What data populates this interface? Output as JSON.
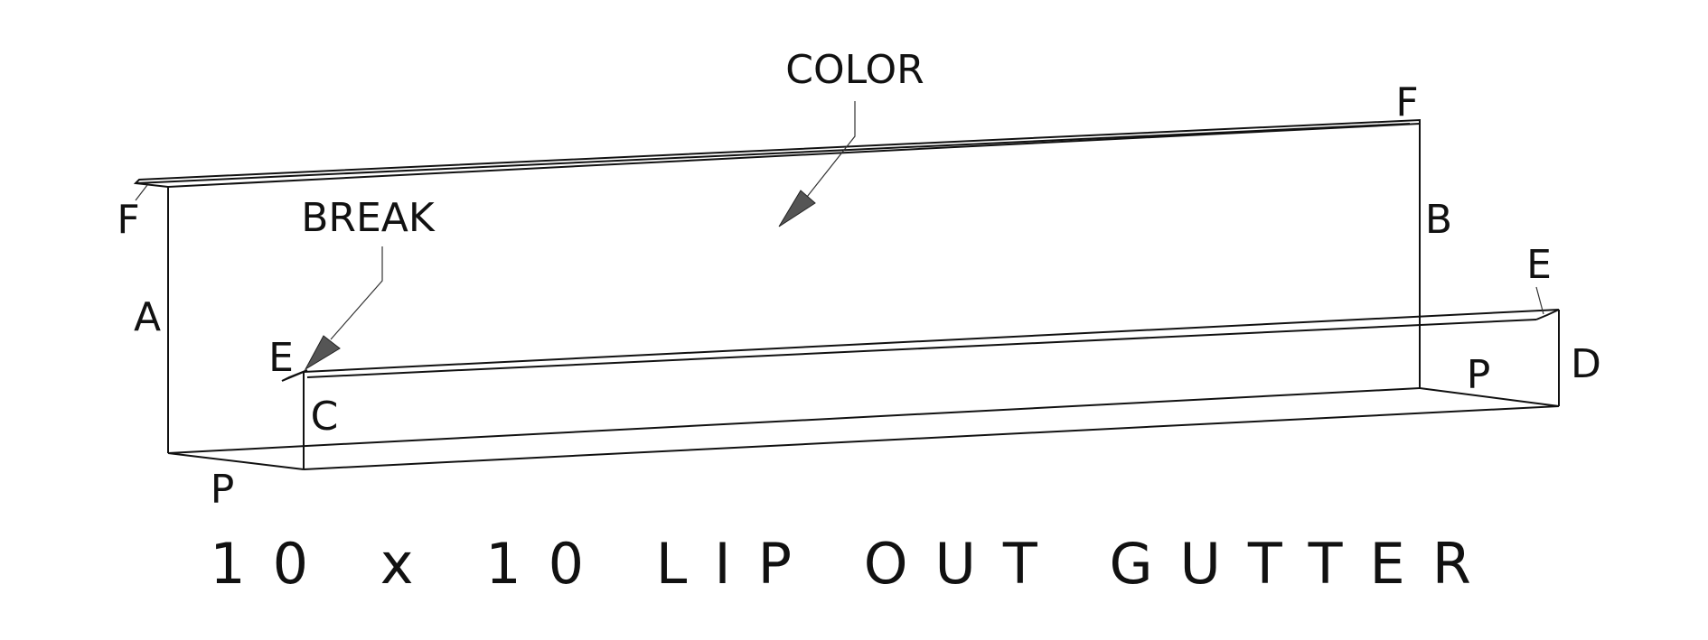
{
  "title": "10 x 10 LIP OUT GUTTER",
  "callouts": {
    "color": "COLOR",
    "break": "BREAK"
  },
  "dimension_labels": {
    "f_left": "F",
    "f_right": "F",
    "a": "A",
    "b": "B",
    "c": "C",
    "d": "D",
    "e_left": "E",
    "e_right": "E",
    "p_left": "P",
    "p_right": "P"
  },
  "colors": {
    "line": "#111111",
    "arrow": "#555555",
    "background": "#ffffff"
  }
}
